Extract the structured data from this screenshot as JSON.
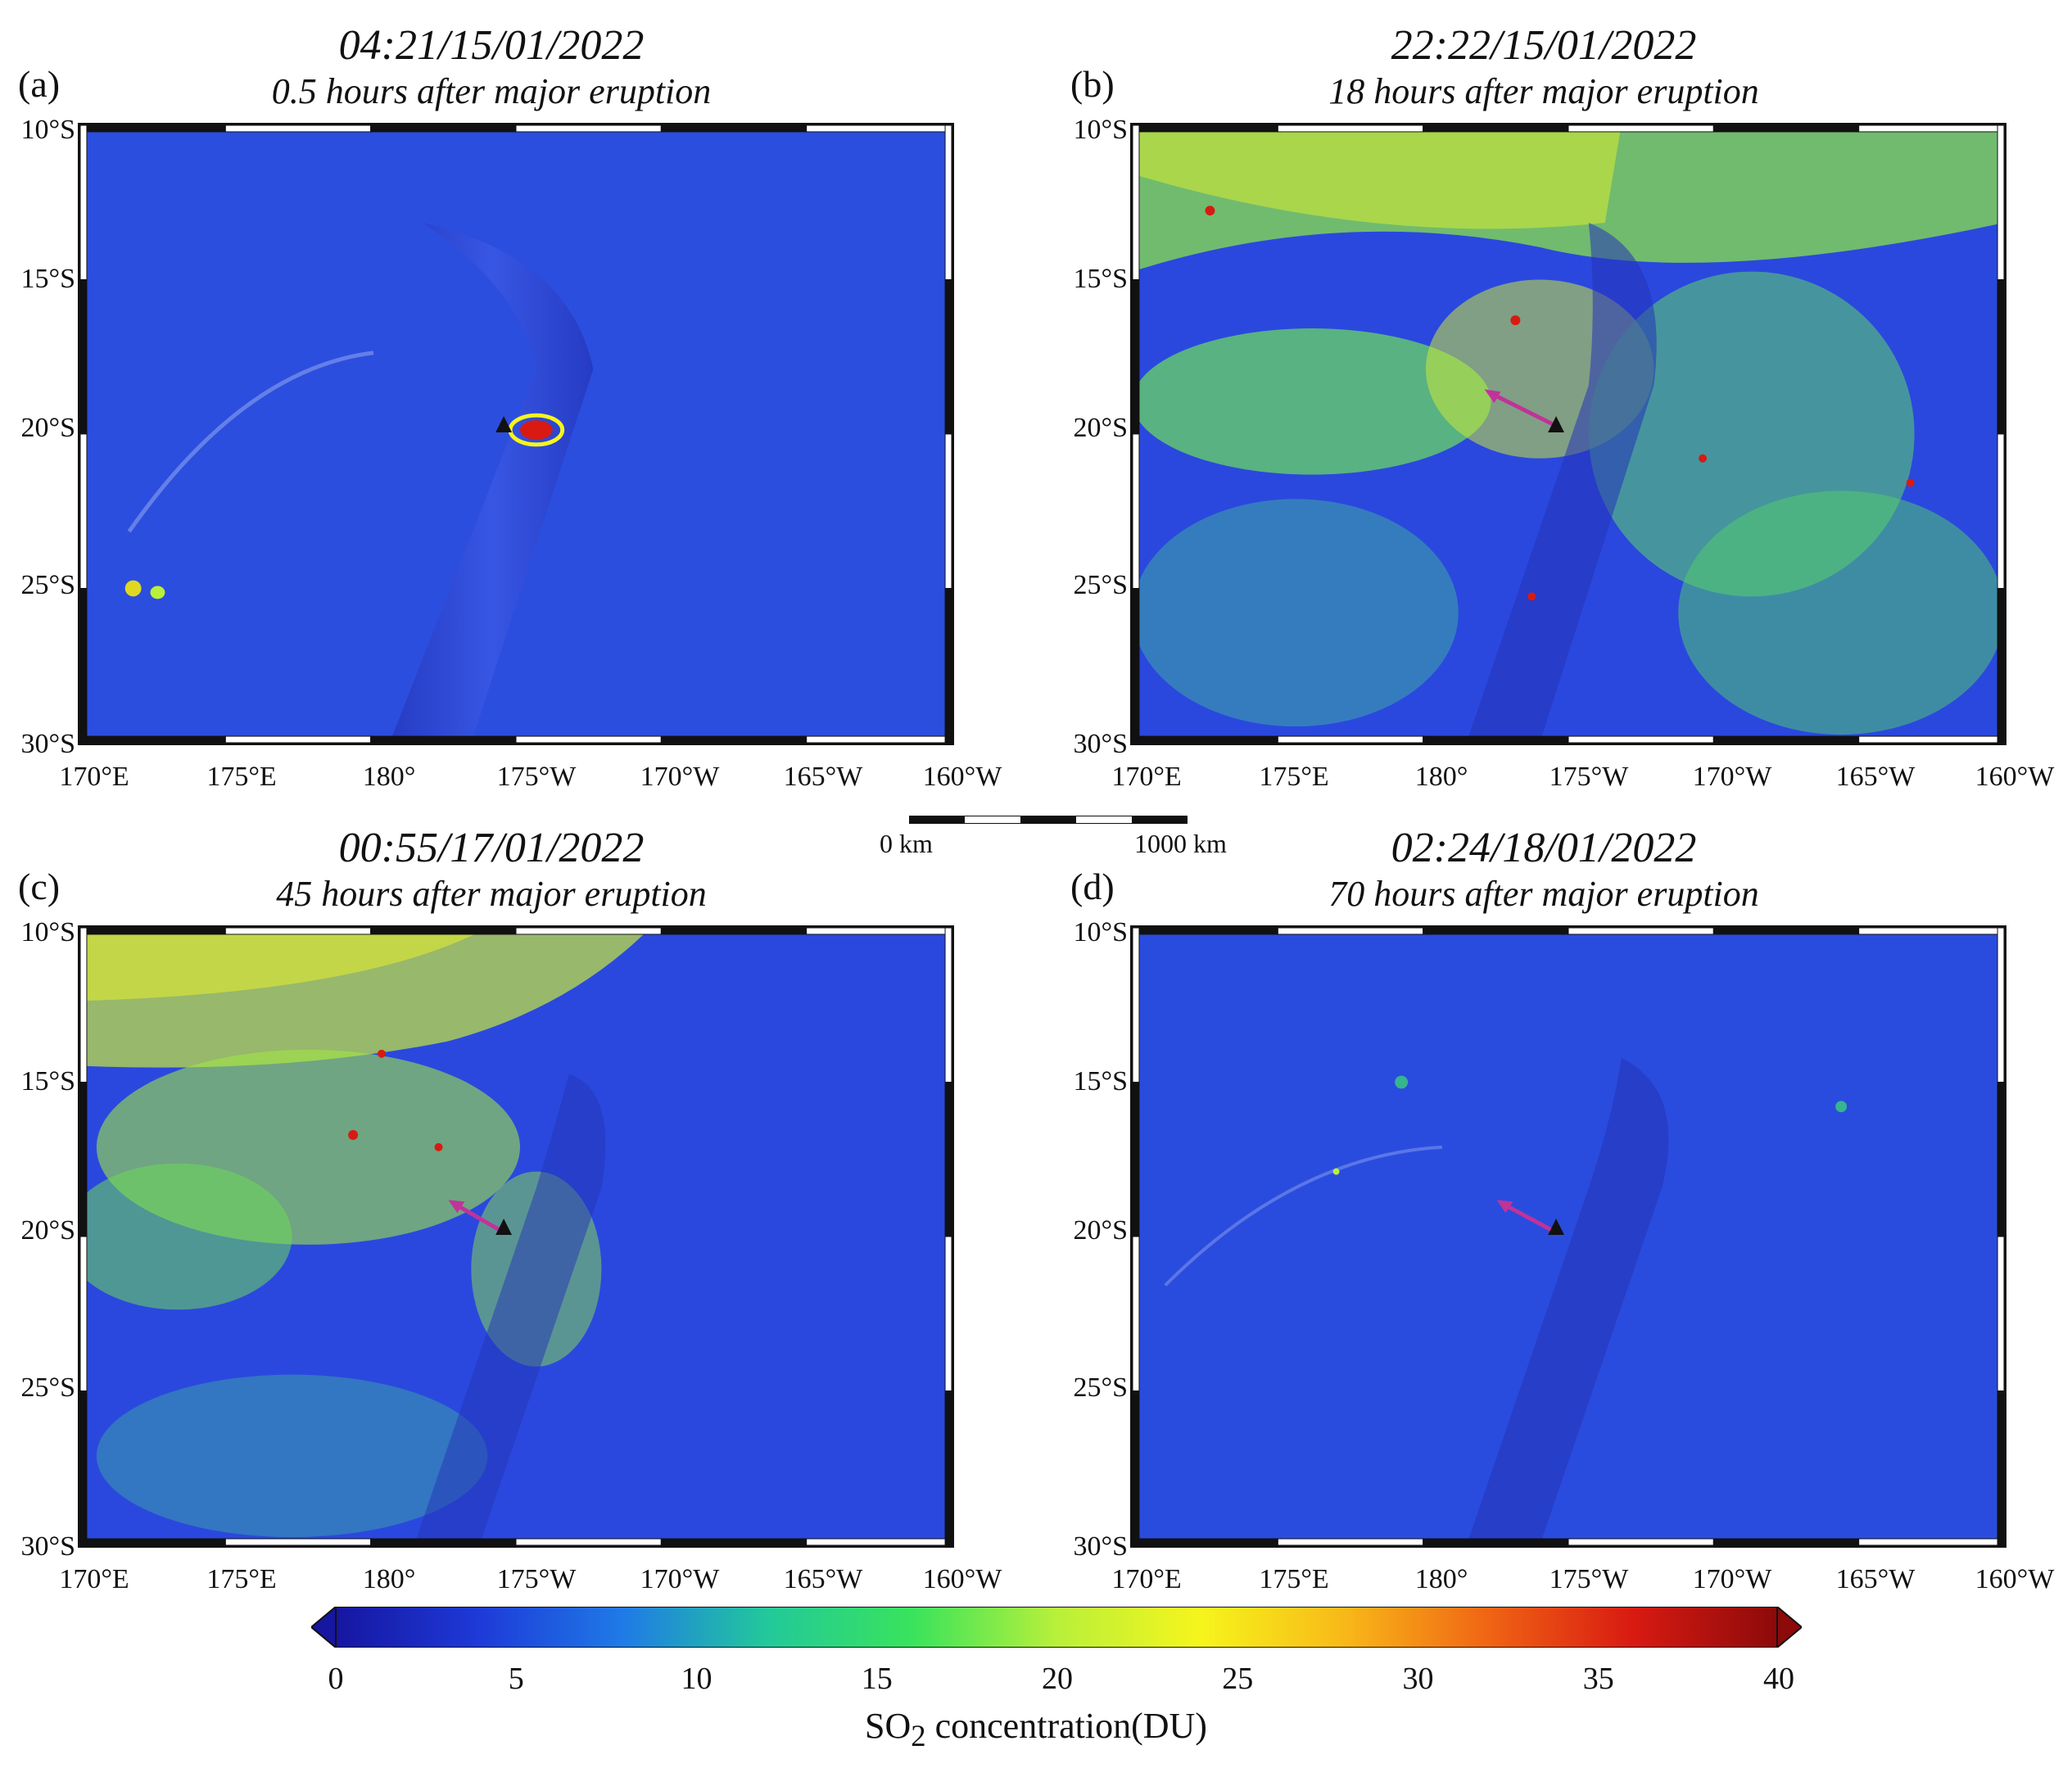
{
  "panels": [
    {
      "label": "(a)",
      "time": "04:21/15/01/2022",
      "subtitle": "0.5 hours after major eruption"
    },
    {
      "label": "(b)",
      "time": "22:22/15/01/2022",
      "subtitle": "18 hours after major eruption"
    },
    {
      "label": "(c)",
      "time": "00:55/17/01/2022",
      "subtitle": "45 hours after major eruption"
    },
    {
      "label": "(d)",
      "time": "02:24/18/01/2022",
      "subtitle": "70 hours after major eruption"
    }
  ],
  "axes": {
    "lat_labels": [
      "10°S",
      "15°S",
      "20°S",
      "25°S",
      "30°S"
    ],
    "lon_labels": [
      "170°E",
      "175°E",
      "180°",
      "175°W",
      "170°W",
      "165°W",
      "160°W"
    ]
  },
  "scale_bar": {
    "start_label": "0 km",
    "end_label": "1000 km"
  },
  "colorbar": {
    "ticks": [
      "0",
      "5",
      "10",
      "15",
      "20",
      "25",
      "30",
      "35",
      "40"
    ],
    "title_prefix": "SO",
    "title_subscript": "2",
    "title_suffix": " concentration(DU)",
    "colors": [
      "#1616a0",
      "#1e3ad8",
      "#1f7be6",
      "#22c99a",
      "#39e35c",
      "#b8f03a",
      "#f6f51c",
      "#f8b818",
      "#f06414",
      "#d81a12",
      "#8c0a0a"
    ]
  },
  "map_style": {
    "ocean_color": "#2a3fd6",
    "volcano_marker_color": "#111111",
    "arrow_color": "#c0339a"
  }
}
